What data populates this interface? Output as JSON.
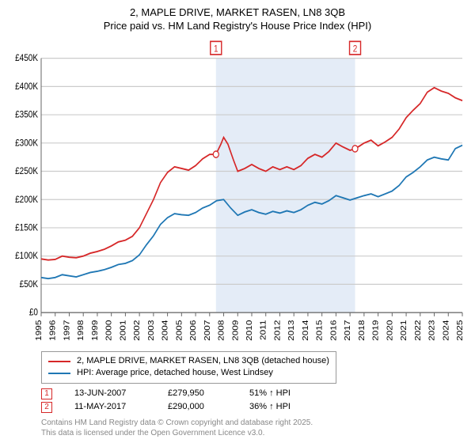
{
  "title": "2, MAPLE DRIVE, MARKET RASEN, LN8 3QB",
  "subtitle": "Price paid vs. HM Land Registry's House Price Index (HPI)",
  "chart": {
    "type": "line",
    "background_color": "#ffffff",
    "grid_color": "#cccccc",
    "axis_color": "#666666",
    "highlight_band_color": "#aec7e855",
    "x_axis": {
      "min": 1995,
      "max": 2025,
      "ticks": [
        1995,
        1996,
        1997,
        1998,
        1999,
        2000,
        2001,
        2002,
        2003,
        2004,
        2005,
        2006,
        2007,
        2008,
        2009,
        2010,
        2011,
        2012,
        2013,
        2014,
        2015,
        2016,
        2017,
        2018,
        2019,
        2020,
        2021,
        2022,
        2023,
        2024,
        2025
      ],
      "label_fontsize": 10,
      "label_rotation": -90
    },
    "y_axis": {
      "min": 0,
      "max": 450000,
      "ticks": [
        0,
        50000,
        100000,
        150000,
        200000,
        250000,
        300000,
        350000,
        400000,
        450000
      ],
      "tick_labels": [
        "£0",
        "£50K",
        "£100K",
        "£150K",
        "£200K",
        "£250K",
        "£300K",
        "£350K",
        "£400K",
        "£450K"
      ],
      "label_fontsize": 10
    },
    "highlight_band": {
      "x_start": 2007.45,
      "x_end": 2017.36
    },
    "series": [
      {
        "name": "property_price",
        "label": "2, MAPLE DRIVE, MARKET RASEN, LN8 3QB (detached house)",
        "color": "#d62728",
        "line_width": 1.6,
        "data": [
          [
            1995,
            95000
          ],
          [
            1995.5,
            93000
          ],
          [
            1996,
            94000
          ],
          [
            1996.5,
            100000
          ],
          [
            1997,
            98000
          ],
          [
            1997.5,
            97000
          ],
          [
            1998,
            100000
          ],
          [
            1998.5,
            105000
          ],
          [
            1999,
            108000
          ],
          [
            1999.5,
            112000
          ],
          [
            2000,
            118000
          ],
          [
            2000.5,
            125000
          ],
          [
            2001,
            128000
          ],
          [
            2001.5,
            135000
          ],
          [
            2002,
            150000
          ],
          [
            2002.5,
            175000
          ],
          [
            2003,
            200000
          ],
          [
            2003.5,
            230000
          ],
          [
            2004,
            248000
          ],
          [
            2004.5,
            258000
          ],
          [
            2005,
            255000
          ],
          [
            2005.5,
            252000
          ],
          [
            2006,
            260000
          ],
          [
            2006.5,
            272000
          ],
          [
            2007,
            280000
          ],
          [
            2007.45,
            279950
          ],
          [
            2007.8,
            298000
          ],
          [
            2008,
            310000
          ],
          [
            2008.3,
            298000
          ],
          [
            2008.7,
            270000
          ],
          [
            2009,
            250000
          ],
          [
            2009.5,
            255000
          ],
          [
            2010,
            262000
          ],
          [
            2010.5,
            255000
          ],
          [
            2011,
            250000
          ],
          [
            2011.5,
            258000
          ],
          [
            2012,
            253000
          ],
          [
            2012.5,
            258000
          ],
          [
            2013,
            253000
          ],
          [
            2013.5,
            260000
          ],
          [
            2014,
            273000
          ],
          [
            2014.5,
            280000
          ],
          [
            2015,
            275000
          ],
          [
            2015.5,
            285000
          ],
          [
            2016,
            300000
          ],
          [
            2016.5,
            293000
          ],
          [
            2017,
            287000
          ],
          [
            2017.36,
            290000
          ],
          [
            2017.7,
            295000
          ],
          [
            2018,
            300000
          ],
          [
            2018.5,
            305000
          ],
          [
            2019,
            295000
          ],
          [
            2019.5,
            302000
          ],
          [
            2020,
            310000
          ],
          [
            2020.5,
            325000
          ],
          [
            2021,
            345000
          ],
          [
            2021.5,
            358000
          ],
          [
            2022,
            370000
          ],
          [
            2022.5,
            390000
          ],
          [
            2023,
            398000
          ],
          [
            2023.5,
            392000
          ],
          [
            2024,
            388000
          ],
          [
            2024.5,
            380000
          ],
          [
            2025,
            375000
          ]
        ]
      },
      {
        "name": "hpi",
        "label": "HPI: Average price, detached house, West Lindsey",
        "color": "#1f77b4",
        "line_width": 1.6,
        "data": [
          [
            1995,
            62000
          ],
          [
            1995.5,
            60000
          ],
          [
            1996,
            62000
          ],
          [
            1996.5,
            67000
          ],
          [
            1997,
            65000
          ],
          [
            1997.5,
            63000
          ],
          [
            1998,
            67000
          ],
          [
            1998.5,
            71000
          ],
          [
            1999,
            73000
          ],
          [
            1999.5,
            76000
          ],
          [
            2000,
            80000
          ],
          [
            2000.5,
            85000
          ],
          [
            2001,
            87000
          ],
          [
            2001.5,
            92000
          ],
          [
            2002,
            102000
          ],
          [
            2002.5,
            120000
          ],
          [
            2003,
            136000
          ],
          [
            2003.5,
            156000
          ],
          [
            2004,
            168000
          ],
          [
            2004.5,
            175000
          ],
          [
            2005,
            173000
          ],
          [
            2005.5,
            172000
          ],
          [
            2006,
            177000
          ],
          [
            2006.5,
            185000
          ],
          [
            2007,
            190000
          ],
          [
            2007.5,
            198000
          ],
          [
            2008,
            200000
          ],
          [
            2008.5,
            185000
          ],
          [
            2009,
            172000
          ],
          [
            2009.5,
            178000
          ],
          [
            2010,
            182000
          ],
          [
            2010.5,
            177000
          ],
          [
            2011,
            174000
          ],
          [
            2011.5,
            179000
          ],
          [
            2012,
            176000
          ],
          [
            2012.5,
            180000
          ],
          [
            2013,
            177000
          ],
          [
            2013.5,
            182000
          ],
          [
            2014,
            190000
          ],
          [
            2014.5,
            195000
          ],
          [
            2015,
            192000
          ],
          [
            2015.5,
            198000
          ],
          [
            2016,
            207000
          ],
          [
            2016.5,
            203000
          ],
          [
            2017,
            199000
          ],
          [
            2017.5,
            203000
          ],
          [
            2018,
            207000
          ],
          [
            2018.5,
            210000
          ],
          [
            2019,
            205000
          ],
          [
            2019.5,
            210000
          ],
          [
            2020,
            215000
          ],
          [
            2020.5,
            225000
          ],
          [
            2021,
            240000
          ],
          [
            2021.5,
            248000
          ],
          [
            2022,
            258000
          ],
          [
            2022.5,
            270000
          ],
          [
            2023,
            275000
          ],
          [
            2023.5,
            272000
          ],
          [
            2024,
            270000
          ],
          [
            2024.5,
            290000
          ],
          [
            2025,
            296000
          ]
        ]
      }
    ],
    "markers": [
      {
        "id": "1",
        "x": 2007.45,
        "y": 279950,
        "color": "#d62728"
      },
      {
        "id": "2",
        "x": 2017.36,
        "y": 290000,
        "color": "#d62728"
      }
    ]
  },
  "legend": {
    "border_color": "#999999",
    "items": [
      {
        "color": "#d62728",
        "label": "2, MAPLE DRIVE, MARKET RASEN, LN8 3QB (detached house)"
      },
      {
        "color": "#1f77b4",
        "label": "HPI: Average price, detached house, West Lindsey"
      }
    ]
  },
  "sales": [
    {
      "marker": "1",
      "marker_color": "#d62728",
      "date": "13-JUN-2007",
      "price": "£279,950",
      "hpi_delta": "51% ↑ HPI"
    },
    {
      "marker": "2",
      "marker_color": "#d62728",
      "date": "11-MAY-2017",
      "price": "£290,000",
      "hpi_delta": "36% ↑ HPI"
    }
  ],
  "footer": {
    "line1": "Contains HM Land Registry data © Crown copyright and database right 2025.",
    "line2": "This data is licensed under the Open Government Licence v3.0."
  }
}
